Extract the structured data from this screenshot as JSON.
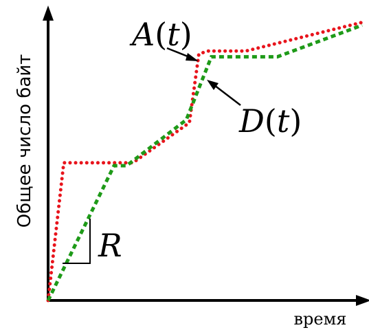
{
  "chart_data": {
    "type": "line",
    "title": "",
    "xlabel": "время",
    "ylabel": "Общее число байт",
    "xlim": [
      0,
      100
    ],
    "ylim": [
      0,
      100
    ],
    "grid": false,
    "series": [
      {
        "name": "A(t)",
        "color": "#e8141c",
        "style": "dotted",
        "points": [
          [
            0,
            0
          ],
          [
            5,
            48
          ],
          [
            27,
            48
          ],
          [
            45,
            62
          ],
          [
            48,
            86
          ],
          [
            51,
            87
          ],
          [
            63,
            87
          ],
          [
            100,
            97
          ]
        ]
      },
      {
        "name": "D(t)",
        "color": "#1e9a18",
        "style": "dashed",
        "points": [
          [
            0,
            0
          ],
          [
            21,
            47
          ],
          [
            25,
            47
          ],
          [
            44,
            63
          ],
          [
            52,
            85
          ],
          [
            73,
            85
          ],
          [
            100,
            96
          ]
        ]
      }
    ],
    "annotations": [
      {
        "text_main": "A",
        "text_arg": "t",
        "target_series": "A(t)"
      },
      {
        "text_main": "D",
        "text_arg": "t",
        "target_series": "D(t)"
      },
      {
        "text": "R",
        "meaning": "slope of D(t)"
      }
    ]
  }
}
